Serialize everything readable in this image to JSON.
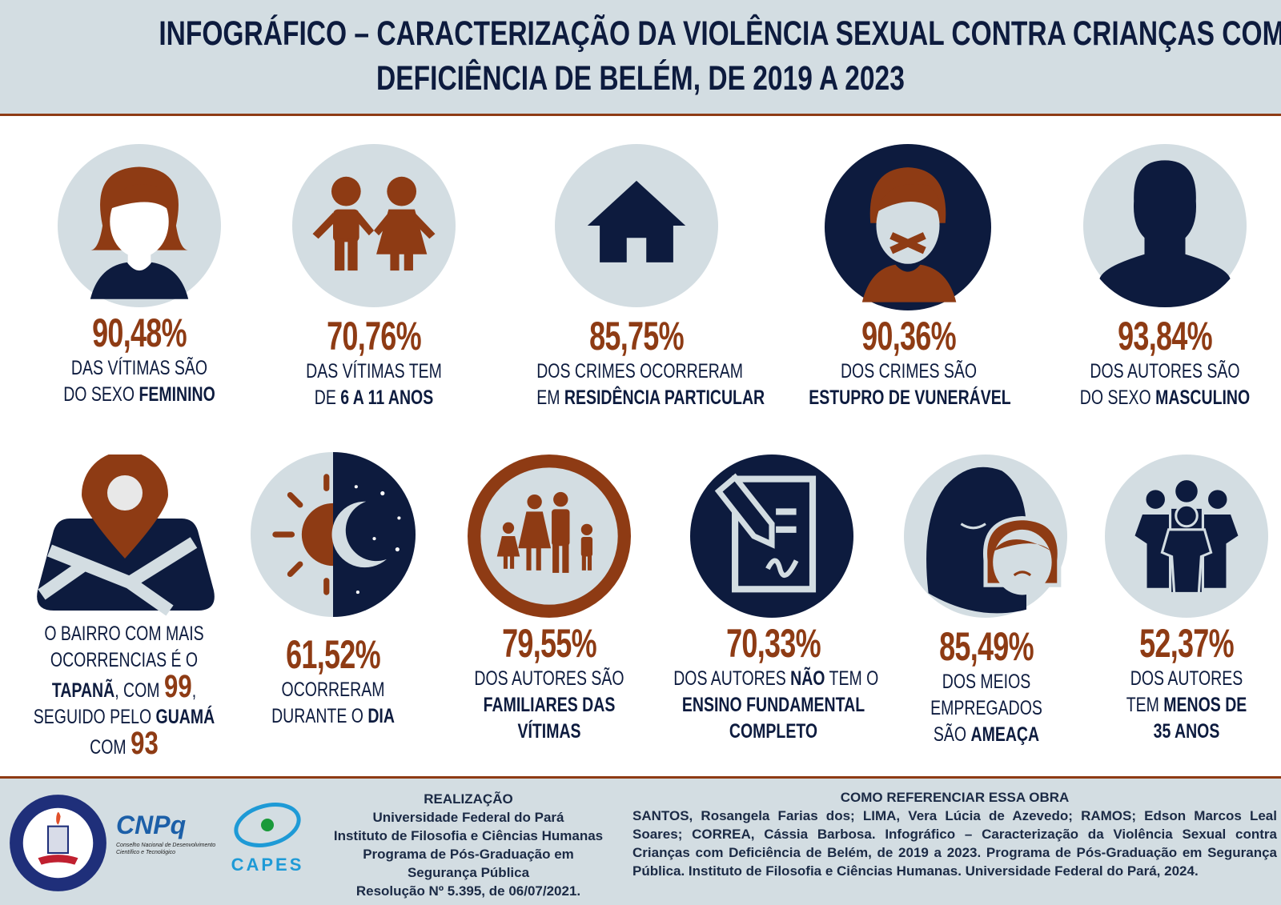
{
  "header": {
    "line1": "INFOGRÁFICO – CARACTERIZAÇÃO DA VIOLÊNCIA SEXUAL CONTRA CRIANÇAS COM",
    "line2": "DEFICIÊNCIA DE BELÉM, DE 2019 A 2023"
  },
  "stats": [
    {
      "pct": "90,48%",
      "l1": "DAS VÍTIMAS SÃO",
      "l2a": "DO SEXO ",
      "l2b": "FEMININO",
      "icon": "woman-icon"
    },
    {
      "pct": "70,76%",
      "l1": "DAS VÍTIMAS TEM",
      "l2a": "DE ",
      "l2b": "6 A 11 ANOS",
      "icon": "children-icon"
    },
    {
      "pct": "85,75%",
      "l1": "DOS CRIMES OCORRERAM",
      "l2a": "EM ",
      "l2b": "RESIDÊNCIA PARTICULAR",
      "icon": "house-icon"
    },
    {
      "pct": "90,36%",
      "l1": "DOS CRIMES  SÃO",
      "l2a": "",
      "l2b": "ESTUPRO DE VUNERÁVEL",
      "icon": "gagged-child-icon"
    },
    {
      "pct": "93,84%",
      "l1": "DOS AUTORES  SÃO",
      "l2a": "DO SEXO ",
      "l2b": "MASCULINO",
      "icon": "man-silhouette-icon"
    }
  ],
  "bairro": {
    "l1": "O BAIRRO COM MAIS",
    "l2": "OCORRENCIAS É O",
    "l3a": "TAPANÃ",
    "l3b": ", COM ",
    "l3c": "99",
    "l3d": ",",
    "l4a": "SEGUIDO PELO ",
    "l4b": "GUAMÁ",
    "l5a": "COM ",
    "l5b": "93"
  },
  "dia": {
    "pct": "61,52%",
    "l1": "OCORRERAM",
    "l2a": "DURANTE O ",
    "l2b": "DIA"
  },
  "familiares": {
    "pct": "79,55%",
    "l1": "DOS AUTORES  SÃO",
    "l2": "FAMILIARES DAS",
    "l3": "VÍTIMAS"
  },
  "ensino": {
    "pct": "70,33%",
    "l1a": "DOS AUTORES ",
    "l1b": "NÃO",
    "l1c": " TEM O",
    "l2": "ENSINO FUNDAMENTAL",
    "l3": "COMPLETO"
  },
  "ameaca": {
    "pct": "85,49%",
    "l1": "DOS MEIOS",
    "l2": "EMPREGADOS",
    "l3a": "SÃO  ",
    "l3b": "AMEAÇA"
  },
  "idade": {
    "pct": "52,37%",
    "l1": "DOS AUTORES",
    "l2a": "TEM  ",
    "l2b": "MENOS DE",
    "l3": "35 ANOS"
  },
  "footer": {
    "realizacao": {
      "title": "REALIZAÇÃO",
      "lines": [
        "Universidade Federal do Pará",
        "Instituto de Filosofia e Ciências Humanas",
        "Programa de Pós-Graduação em",
        "Segurança Pública",
        "Resolução Nº 5.395, de 06/07/2021."
      ]
    },
    "referencia": {
      "title": "COMO REFERENCIAR ESSA OBRA",
      "text": "SANTOS, Rosangela Farias dos; LIMA, Vera Lúcia de Azevedo; RAMOS; Edson Marcos Leal Soares; CORREA, Cássia Barbosa. Infográfico – Caracterização da Violência Sexual contra Crianças com Deficiência de Belém, de 2019 a 2023. Programa de Pós-Graduação em Segurança Pública. Instituto de Filosofia e Ciências Humanas. Universidade Federal do Pará, 2024."
    },
    "logos": {
      "ufpa_ring": "UNIVERSIDADE FEDERAL DO PARÁ • PROGRAMA DE PÓS-GRADUAÇÃO EM SEGURANÇA PÚBLICA",
      "cnpq": "CNPq",
      "cnpq_sub": "Conselho Nacional de Desenvolvimento Científico e Tecnológico",
      "capes": "CAPES"
    }
  },
  "colors": {
    "navy": "#0d1b3e",
    "rust": "#8e3b14",
    "light": "#d3dde2"
  }
}
